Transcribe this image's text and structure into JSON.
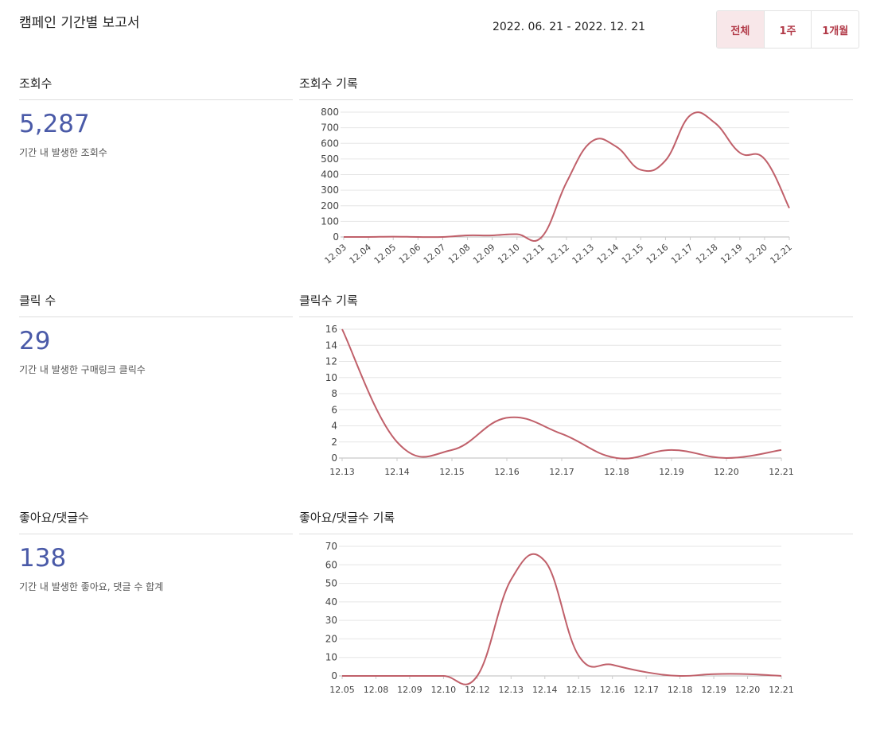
{
  "header": {
    "title": "캠페인 기간별 보고서",
    "date_range": "2022. 06. 21 - 2022. 12. 21",
    "periods": [
      {
        "label": "전체",
        "active": true
      },
      {
        "label": "1주",
        "active": false
      },
      {
        "label": "1개월",
        "active": false
      }
    ]
  },
  "colors": {
    "accent": "#4a5aa8",
    "line": "#c0606a",
    "button_text": "#b23a48"
  },
  "views": {
    "title": "조회수",
    "value": "5,287",
    "caption": "기간 내 발생한 조회수",
    "chart_title": "조회수 기록"
  },
  "clicks": {
    "title": "클릭 수",
    "value": "29",
    "caption": "기간 내 발생한 구매링크 클릭수",
    "chart_title": "클릭수 기록"
  },
  "engagement": {
    "title": "좋아요/댓글수",
    "value": "138",
    "caption": "기간 내 발생한 좋아요, 댓글 수 합계",
    "chart_title": "좋아요/댓글수 기록"
  },
  "chart_data": [
    {
      "type": "line",
      "title": "조회수 기록",
      "x": [
        "12.03",
        "12.04",
        "12.05",
        "12.06",
        "12.07",
        "12.08",
        "12.09",
        "12.10",
        "12.11",
        "12.12",
        "12.13",
        "12.14",
        "12.15",
        "12.16",
        "12.17",
        "12.18",
        "12.19",
        "12.20",
        "12.21"
      ],
      "values": [
        0,
        0,
        2,
        0,
        0,
        10,
        10,
        18,
        0,
        350,
        610,
        580,
        430,
        490,
        780,
        730,
        540,
        500,
        185
      ],
      "ylim": [
        0,
        800
      ],
      "yticks": [
        0,
        100,
        200,
        300,
        400,
        500,
        600,
        700,
        800
      ],
      "x_rotated": true,
      "grid": true
    },
    {
      "type": "line",
      "title": "클릭수 기록",
      "x": [
        "12.13",
        "12.14",
        "12.15",
        "12.16",
        "12.17",
        "12.18",
        "12.19",
        "12.20",
        "12.21"
      ],
      "values": [
        16,
        2,
        1,
        5,
        3,
        0,
        1,
        0,
        1
      ],
      "ylim": [
        0,
        16
      ],
      "yticks": [
        0,
        2,
        4,
        6,
        8,
        10,
        12,
        14,
        16
      ],
      "x_rotated": false,
      "grid": true
    },
    {
      "type": "line",
      "title": "좋아요/댓글수 기록",
      "x": [
        "12.05",
        "12.08",
        "12.09",
        "12.10",
        "12.12",
        "12.13",
        "12.14",
        "12.15",
        "12.16",
        "12.17",
        "12.18",
        "12.19",
        "12.20",
        "12.21"
      ],
      "values": [
        0,
        0,
        0,
        0,
        0,
        52,
        62,
        11,
        6,
        2,
        0,
        1,
        1,
        0
      ],
      "ylim": [
        0,
        70
      ],
      "yticks": [
        0,
        10,
        20,
        30,
        40,
        50,
        60,
        70
      ],
      "x_rotated": false,
      "grid": true
    }
  ]
}
